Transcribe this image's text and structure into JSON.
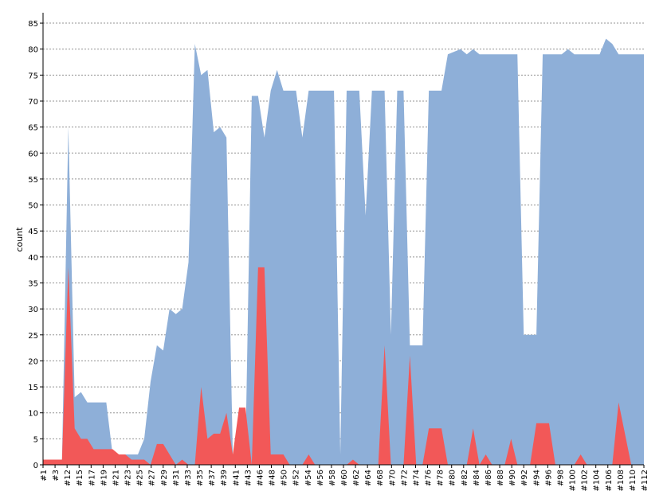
{
  "chart_data": {
    "type": "area",
    "title": "",
    "xlabel": "",
    "ylabel": "count",
    "ylim": [
      0,
      87
    ],
    "yticks": [
      0,
      5,
      10,
      15,
      20,
      25,
      30,
      35,
      40,
      45,
      50,
      55,
      60,
      65,
      70,
      75,
      80,
      85
    ],
    "grid": true,
    "legend": "none",
    "colors": {
      "blue": "#8eafd8",
      "red": "#f25858"
    },
    "x_labels": [
      "#1",
      "#3",
      "#12",
      "#15",
      "#17",
      "#19",
      "#21",
      "#23",
      "#25",
      "#27",
      "#29",
      "#31",
      "#33",
      "#35",
      "#37",
      "#39",
      "#41",
      "#43",
      "#46",
      "#48",
      "#50",
      "#52",
      "#54",
      "#56",
      "#58",
      "#60",
      "#62",
      "#64",
      "#68",
      "#70",
      "#72",
      "#74",
      "#76",
      "#78",
      "#80",
      "#82",
      "#84",
      "#86",
      "#88",
      "#90",
      "#92",
      "#94",
      "#96",
      "#98",
      "#100",
      "#102",
      "#104",
      "#106",
      "#108",
      "#110",
      "#112"
    ],
    "series": [
      {
        "color": "#8eafd8",
        "points": [
          [
            0,
            1
          ],
          [
            3,
            1
          ],
          [
            4,
            65
          ],
          [
            5,
            13
          ],
          [
            6,
            14
          ],
          [
            7,
            12
          ],
          [
            10,
            12
          ],
          [
            11,
            2
          ],
          [
            15,
            2
          ],
          [
            16,
            5
          ],
          [
            17,
            16
          ],
          [
            18,
            23
          ],
          [
            19,
            22
          ],
          [
            20,
            30
          ],
          [
            21,
            29
          ],
          [
            22,
            30
          ],
          [
            23,
            39
          ],
          [
            24,
            81
          ],
          [
            25,
            75
          ],
          [
            26,
            76
          ],
          [
            27,
            64
          ],
          [
            28,
            65
          ],
          [
            29,
            63
          ],
          [
            30,
            2
          ],
          [
            32,
            2
          ],
          [
            33,
            71
          ],
          [
            34,
            71
          ],
          [
            35,
            63
          ],
          [
            36,
            72
          ],
          [
            37,
            76
          ],
          [
            38,
            72
          ],
          [
            40,
            72
          ],
          [
            41,
            63
          ],
          [
            42,
            72
          ],
          [
            46,
            72
          ],
          [
            47,
            2
          ],
          [
            48,
            72
          ],
          [
            50,
            72
          ],
          [
            51,
            48
          ],
          [
            52,
            72
          ],
          [
            54,
            72
          ],
          [
            55,
            25
          ],
          [
            56,
            72
          ],
          [
            57,
            72
          ],
          [
            58,
            23
          ],
          [
            60,
            23
          ],
          [
            61,
            72
          ],
          [
            63,
            72
          ],
          [
            64,
            79
          ],
          [
            66,
            80
          ],
          [
            67,
            79
          ],
          [
            68,
            80
          ],
          [
            69,
            79
          ],
          [
            75,
            79
          ],
          [
            76,
            25
          ],
          [
            78,
            25
          ],
          [
            79,
            79
          ],
          [
            82,
            79
          ],
          [
            83,
            80
          ],
          [
            84,
            79
          ],
          [
            88,
            79
          ],
          [
            89,
            82
          ],
          [
            90,
            81
          ],
          [
            91,
            79
          ],
          [
            95,
            79
          ]
        ]
      },
      {
        "color": "#f25858",
        "points": [
          [
            0,
            1
          ],
          [
            3,
            1
          ],
          [
            4,
            38
          ],
          [
            5,
            7
          ],
          [
            6,
            5
          ],
          [
            7,
            5
          ],
          [
            8,
            3
          ],
          [
            11,
            3
          ],
          [
            12,
            2
          ],
          [
            13,
            2
          ],
          [
            14,
            1
          ],
          [
            16,
            1
          ],
          [
            17,
            0
          ],
          [
            18,
            4
          ],
          [
            19,
            4
          ],
          [
            20,
            2
          ],
          [
            21,
            0
          ],
          [
            22,
            1
          ],
          [
            23,
            0
          ],
          [
            24,
            0
          ],
          [
            25,
            15
          ],
          [
            26,
            5
          ],
          [
            27,
            6
          ],
          [
            28,
            6
          ],
          [
            29,
            10
          ],
          [
            30,
            2
          ],
          [
            31,
            11
          ],
          [
            32,
            11
          ],
          [
            33,
            0
          ],
          [
            34,
            38
          ],
          [
            35,
            38
          ],
          [
            36,
            2
          ],
          [
            38,
            2
          ],
          [
            39,
            0
          ],
          [
            41,
            0
          ],
          [
            42,
            2
          ],
          [
            43,
            0
          ],
          [
            48,
            0
          ],
          [
            49,
            1
          ],
          [
            50,
            0
          ],
          [
            53,
            0
          ],
          [
            54,
            23
          ],
          [
            55,
            0
          ],
          [
            57,
            0
          ],
          [
            58,
            21
          ],
          [
            59,
            0
          ],
          [
            60,
            0
          ],
          [
            61,
            7
          ],
          [
            63,
            7
          ],
          [
            64,
            0
          ],
          [
            67,
            0
          ],
          [
            68,
            7
          ],
          [
            69,
            0
          ],
          [
            70,
            2
          ],
          [
            71,
            0
          ],
          [
            73,
            0
          ],
          [
            74,
            5
          ],
          [
            75,
            0
          ],
          [
            77,
            0
          ],
          [
            78,
            8
          ],
          [
            80,
            8
          ],
          [
            81,
            0
          ],
          [
            84,
            0
          ],
          [
            85,
            2
          ],
          [
            86,
            0
          ],
          [
            90,
            0
          ],
          [
            91,
            12
          ],
          [
            92,
            6
          ],
          [
            93,
            0
          ],
          [
            95,
            0
          ]
        ]
      }
    ]
  }
}
